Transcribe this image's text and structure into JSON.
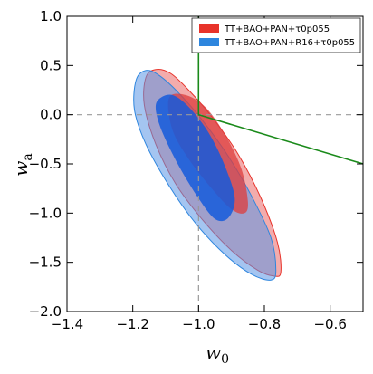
{
  "chart_data": {
    "type": "contour",
    "title": "",
    "xlabel": {
      "main": "w",
      "sub": "0"
    },
    "ylabel": {
      "main": "w",
      "sub": "a"
    },
    "xlim": [
      -1.4,
      -0.5
    ],
    "ylim": [
      -2.0,
      1.0
    ],
    "xticks": [
      -1.4,
      -1.2,
      -1.0,
      -0.8,
      -0.6
    ],
    "xtick_labels": [
      "−1.4",
      "−1.2",
      "−1.0",
      "−0.8",
      "−0.6"
    ],
    "yticks": [
      -2.0,
      -1.5,
      -1.0,
      -0.5,
      0.0,
      0.5,
      1.0
    ],
    "ytick_labels": [
      "−2.0",
      "−1.5",
      "−1.0",
      "−0.5",
      "0.0",
      "0.5",
      "1.0"
    ],
    "grid": false,
    "legend_position": "top-right",
    "series": [
      {
        "name": "TT+BAO+PAN+τ0p055",
        "color": "#e8332a",
        "fill_95": "rgba(232,90,90,0.50)",
        "fill_68": "rgba(222,60,60,0.75)",
        "contour_95": [
          [
            -1.16,
            0.38
          ],
          [
            -1.13,
            0.46
          ],
          [
            -1.085,
            0.42
          ],
          [
            -1.03,
            0.25
          ],
          [
            -0.96,
            -0.02
          ],
          [
            -0.88,
            -0.4
          ],
          [
            -0.81,
            -0.85
          ],
          [
            -0.76,
            -1.3
          ],
          [
            -0.75,
            -1.6
          ],
          [
            -0.77,
            -1.64
          ],
          [
            -0.82,
            -1.58
          ],
          [
            -0.9,
            -1.38
          ],
          [
            -0.99,
            -1.06
          ],
          [
            -1.07,
            -0.7
          ],
          [
            -1.13,
            -0.3
          ],
          [
            -1.165,
            0.1
          ]
        ],
        "contour_68": [
          [
            -1.09,
            0.17
          ],
          [
            -1.04,
            0.2
          ],
          [
            -0.98,
            0.08
          ],
          [
            -0.92,
            -0.2
          ],
          [
            -0.87,
            -0.55
          ],
          [
            -0.85,
            -0.88
          ],
          [
            -0.86,
            -1.0
          ],
          [
            -0.9,
            -0.96
          ],
          [
            -0.96,
            -0.75
          ],
          [
            -1.03,
            -0.45
          ],
          [
            -1.08,
            -0.15
          ]
        ]
      },
      {
        "name": "TT+BAO+PAN+R16+τ0p055",
        "color": "#2e86de",
        "fill_95": "rgba(90,150,230,0.55)",
        "fill_68": "rgba(20,90,220,0.85)",
        "contour_95": [
          [
            -1.19,
            0.35
          ],
          [
            -1.16,
            0.45
          ],
          [
            -1.12,
            0.4
          ],
          [
            -1.06,
            0.22
          ],
          [
            -0.99,
            -0.05
          ],
          [
            -0.91,
            -0.42
          ],
          [
            -0.84,
            -0.82
          ],
          [
            -0.78,
            -1.25
          ],
          [
            -0.765,
            -1.58
          ],
          [
            -0.78,
            -1.68
          ],
          [
            -0.84,
            -1.62
          ],
          [
            -0.92,
            -1.42
          ],
          [
            -1.01,
            -1.1
          ],
          [
            -1.09,
            -0.72
          ],
          [
            -1.16,
            -0.3
          ],
          [
            -1.195,
            0.05
          ]
        ],
        "contour_68": [
          [
            -1.12,
            0.16
          ],
          [
            -1.08,
            0.2
          ],
          [
            -1.03,
            0.08
          ],
          [
            -0.97,
            -0.18
          ],
          [
            -0.92,
            -0.52
          ],
          [
            -0.89,
            -0.85
          ],
          [
            -0.91,
            -1.05
          ],
          [
            -0.95,
            -1.06
          ],
          [
            -1.0,
            -0.85
          ],
          [
            -1.06,
            -0.52
          ],
          [
            -1.11,
            -0.18
          ],
          [
            -1.13,
            0.05
          ]
        ]
      }
    ],
    "reference_lines": [
      {
        "kind": "horizontal",
        "y": 0.0,
        "style": "dashed",
        "color": "#999999"
      },
      {
        "kind": "vertical",
        "x": -1.0,
        "style": "dashed",
        "color": "#999999"
      }
    ],
    "prior_boundary": {
      "color": "#1a8a1a",
      "points": [
        [
          -1.0,
          1.0
        ],
        [
          -1.0,
          0.0
        ],
        [
          -0.5,
          -0.5
        ]
      ]
    }
  }
}
